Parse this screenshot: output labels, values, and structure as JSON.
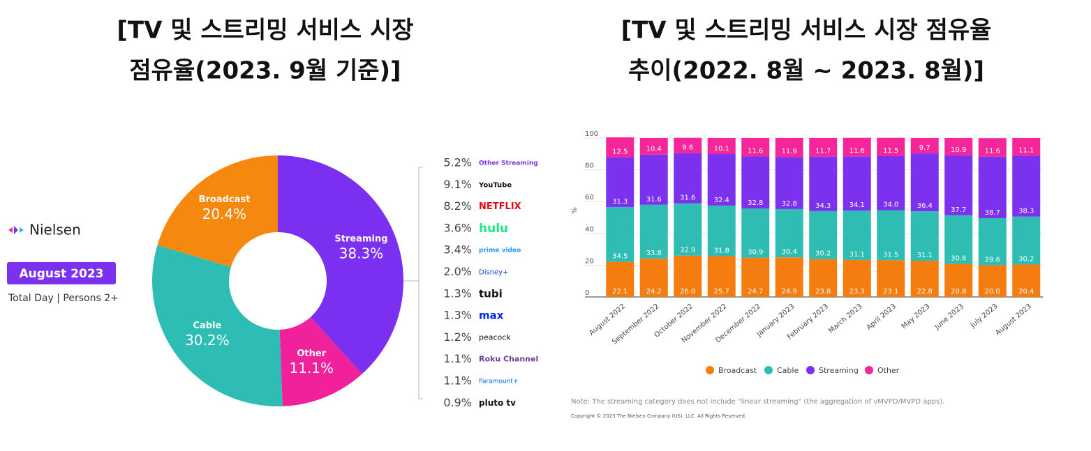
{
  "chart_data": [
    {
      "type": "donut",
      "title": [
        "[TV 및 스트리밍 서비스 시장",
        "점유율(2023. 9월 기준)]"
      ],
      "brand": "Nielsen",
      "badge": "August 2023",
      "subtitle": "Total Day | Persons 2+",
      "categories": [
        "Streaming",
        "Other",
        "Cable",
        "Broadcast"
      ],
      "values": [
        38.3,
        11.1,
        30.2,
        20.4
      ],
      "value_labels": [
        "38.3%",
        "11.1%",
        "30.2%",
        "20.4%"
      ],
      "colors": [
        "#7b2ff0",
        "#f0219a",
        "#2ebdb5",
        "#f5890f"
      ],
      "breakdown": [
        {
          "share": "5.2%",
          "service": "Other Streaming"
        },
        {
          "share": "9.1%",
          "service": "YouTube"
        },
        {
          "share": "8.2%",
          "service": "NETFLIX"
        },
        {
          "share": "3.6%",
          "service": "hulu"
        },
        {
          "share": "3.4%",
          "service": "prime video"
        },
        {
          "share": "2.0%",
          "service": "Disney+"
        },
        {
          "share": "1.3%",
          "service": "tubi"
        },
        {
          "share": "1.3%",
          "service": "max"
        },
        {
          "share": "1.2%",
          "service": "peacock"
        },
        {
          "share": "1.1%",
          "service": "Roku Channel"
        },
        {
          "share": "1.1%",
          "service": "Paramount+"
        },
        {
          "share": "0.9%",
          "service": "pluto tv"
        }
      ]
    },
    {
      "type": "stacked_bar",
      "title": [
        "[TV 및 스트리밍 서비스 시장 점유율",
        "추이(2022. 8월 ~ 2023. 8월)]"
      ],
      "y_label": "%",
      "categories": [
        "August 2022",
        "September 2022",
        "October 2022",
        "November 2022",
        "December 2022",
        "January 2023",
        "February 2023",
        "March 2023",
        "April 2023",
        "May 2023",
        "June 2023",
        "July 2023",
        "August 2023"
      ],
      "series": [
        {
          "name": "Broadcast",
          "color": "#f57c0f",
          "values": [
            22.1,
            24.2,
            26.0,
            25.7,
            24.7,
            24.9,
            23.8,
            23.3,
            23.1,
            22.8,
            20.8,
            20.0,
            20.4
          ],
          "value_labels": [
            "22.1",
            "24.2",
            "26.0",
            "25.7",
            "24.7",
            "24.9",
            "23.8",
            "23.3",
            "23.1",
            "22.8",
            "20.8",
            "20.0",
            "20.4"
          ]
        },
        {
          "name": "Cable",
          "color": "#2ebcb3",
          "values": [
            34.5,
            33.8,
            32.9,
            31.8,
            30.9,
            30.4,
            30.2,
            31.1,
            31.5,
            31.1,
            30.6,
            29.6,
            30.2
          ]
        },
        {
          "name": "Streaming",
          "color": "#7b31ee",
          "values": [
            31.3,
            31.6,
            31.6,
            32.4,
            32.8,
            32.8,
            34.3,
            34.1,
            34.0,
            36.4,
            37.7,
            38.7,
            38.3
          ],
          "value_labels": [
            "31.3",
            "31.6",
            "31.6",
            "32.4",
            "32.8",
            "32.8",
            "34.3",
            "34.1",
            "34.0",
            "36.4",
            "37.7",
            "38.7",
            "38.3"
          ]
        },
        {
          "name": "Other",
          "color": "#f5259a",
          "values": [
            12.5,
            10.4,
            9.6,
            10.1,
            11.6,
            11.9,
            11.7,
            11.6,
            11.5,
            9.7,
            10.9,
            11.6,
            11.1
          ]
        }
      ],
      "ylim": [
        0,
        100
      ],
      "yticks": [
        0,
        20,
        40,
        60,
        80,
        100
      ],
      "grid": true,
      "note": "Note: The streaming category does not include \"linear streaming\" (the aggregation of vMVPD/MVPD apps).",
      "copyright": "Copyright © 2023 The Nielsen Company (US), LLC. All Rights Reserved."
    }
  ]
}
